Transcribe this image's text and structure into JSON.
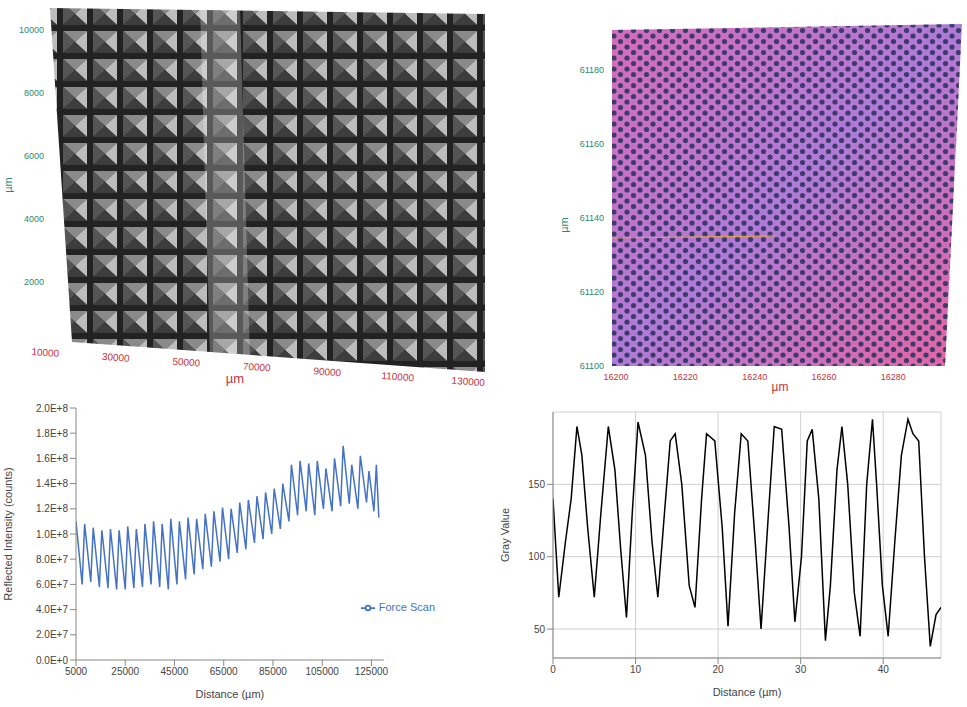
{
  "chart_data": [
    {
      "type": "image",
      "xlabel": "µm",
      "ylabel": "µm",
      "xlim": [
        10000,
        130000
      ],
      "xticks": [
        10000,
        30000,
        50000,
        70000,
        90000,
        110000,
        130000
      ],
      "ylim": [
        0,
        10000
      ],
      "yticks": [
        2000,
        4000,
        6000,
        8000,
        10000
      ]
    },
    {
      "type": "image",
      "xlabel": "µm",
      "ylabel": "µm",
      "xlim": [
        16200,
        16290
      ],
      "xticks": [
        16200,
        16220,
        16240,
        16260,
        16280
      ],
      "ylim": [
        61100,
        61190
      ],
      "yticks": [
        61100,
        61120,
        61140,
        61160,
        61180
      ]
    },
    {
      "type": "line",
      "xlabel": "Distance (µm)",
      "ylabel": "Reflected Intensity (counts)",
      "legend": "right",
      "grid": false,
      "xlim": [
        5000,
        130000
      ],
      "xticks": [
        5000,
        25000,
        45000,
        65000,
        85000,
        105000,
        125000
      ],
      "ylim": [
        0,
        200000000
      ],
      "yticks": [
        {
          "value": 0,
          "label": "0.0E+0"
        },
        {
          "value": 20000000,
          "label": "2.0E+7"
        },
        {
          "value": 40000000,
          "label": "4.0E+7"
        },
        {
          "value": 60000000,
          "label": "6.0E+7"
        },
        {
          "value": 80000000,
          "label": "8.0E+7"
        },
        {
          "value": 100000000,
          "label": "1.0E+8"
        },
        {
          "value": 120000000,
          "label": "1.2E+8"
        },
        {
          "value": 140000000,
          "label": "1.4E+8"
        },
        {
          "value": 160000000,
          "label": "1.6E+8"
        },
        {
          "value": 180000000,
          "label": "1.8E+8"
        },
        {
          "value": 200000000,
          "label": "2.0E+8"
        }
      ],
      "x": [
        5000,
        7500,
        8500,
        11000,
        12000,
        14500,
        15500,
        18000,
        19000,
        21500,
        22500,
        25000,
        26000,
        28500,
        29500,
        32000,
        33000,
        35500,
        36500,
        39000,
        40000,
        42500,
        43500,
        46000,
        47000,
        49500,
        50500,
        53000,
        54000,
        56500,
        57500,
        60000,
        61000,
        63500,
        64500,
        67000,
        68000,
        70500,
        71500,
        74000,
        75000,
        77500,
        78500,
        81000,
        82000,
        84500,
        85500,
        88000,
        89000,
        91500,
        92500,
        95000,
        96000,
        98500,
        99500,
        102000,
        103000,
        105500,
        106500,
        109000,
        110000,
        112500,
        113500,
        116000,
        117000,
        119500,
        120500,
        123000,
        124000,
        126000,
        127000,
        128000
      ],
      "series": [
        {
          "name": "Force Scan",
          "color": "#4472c4",
          "values": [
            110000000,
            60000000,
            108000000,
            62000000,
            105000000,
            58000000,
            103000000,
            57000000,
            104000000,
            56000000,
            103000000,
            56000000,
            106000000,
            57000000,
            104000000,
            58000000,
            108000000,
            60000000,
            110000000,
            58000000,
            108000000,
            56000000,
            112000000,
            60000000,
            110000000,
            64000000,
            113000000,
            68000000,
            112000000,
            72000000,
            116000000,
            74000000,
            118000000,
            78000000,
            121000000,
            80000000,
            120000000,
            85000000,
            125000000,
            88000000,
            127000000,
            93000000,
            130000000,
            96000000,
            133000000,
            100000000,
            136000000,
            104000000,
            140000000,
            110000000,
            155000000,
            115000000,
            158000000,
            118000000,
            156000000,
            115000000,
            158000000,
            120000000,
            152000000,
            118000000,
            160000000,
            122000000,
            170000000,
            124000000,
            155000000,
            120000000,
            162000000,
            125000000,
            150000000,
            118000000,
            155000000,
            113000000
          ]
        }
      ]
    },
    {
      "type": "line",
      "xlabel": "Distance (µm)",
      "ylabel": "Gray Value",
      "grid": true,
      "xlim": [
        0,
        47
      ],
      "xticks": [
        0,
        10,
        20,
        30,
        40
      ],
      "ylim": [
        30,
        200
      ],
      "yticks": [
        50,
        100,
        150
      ],
      "x": [
        0,
        0.7,
        1.5,
        2.2,
        2.9,
        3.5,
        4.2,
        5.0,
        5.8,
        6.7,
        7.5,
        8.2,
        8.9,
        9.6,
        10.3,
        11.2,
        12.0,
        12.7,
        13.5,
        14.2,
        14.8,
        15.6,
        16.5,
        17.2,
        18.0,
        18.6,
        19.6,
        20.5,
        21.2,
        22.0,
        22.8,
        23.6,
        24.5,
        25.2,
        26.1,
        26.8,
        27.7,
        28.6,
        29.3,
        30.1,
        30.8,
        31.4,
        32.2,
        33.0,
        33.6,
        34.4,
        35.0,
        35.7,
        36.5,
        37.2,
        38.0,
        38.7,
        39.2,
        39.9,
        40.6,
        41.4,
        42.2,
        43.0,
        43.6,
        44.3,
        45.0,
        45.7,
        46.4,
        47
      ],
      "series": [
        {
          "color": "#000000",
          "values": [
            140,
            72,
            110,
            140,
            190,
            170,
            120,
            72,
            130,
            190,
            160,
            105,
            58,
            130,
            193,
            170,
            110,
            72,
            130,
            180,
            185,
            150,
            80,
            65,
            140,
            185,
            180,
            120,
            52,
            130,
            185,
            180,
            110,
            50,
            130,
            190,
            188,
            120,
            55,
            100,
            180,
            188,
            140,
            42,
            80,
            160,
            190,
            150,
            75,
            45,
            150,
            195,
            150,
            80,
            45,
            110,
            170,
            195,
            185,
            180,
            100,
            38,
            60,
            65
          ]
        }
      ]
    }
  ]
}
